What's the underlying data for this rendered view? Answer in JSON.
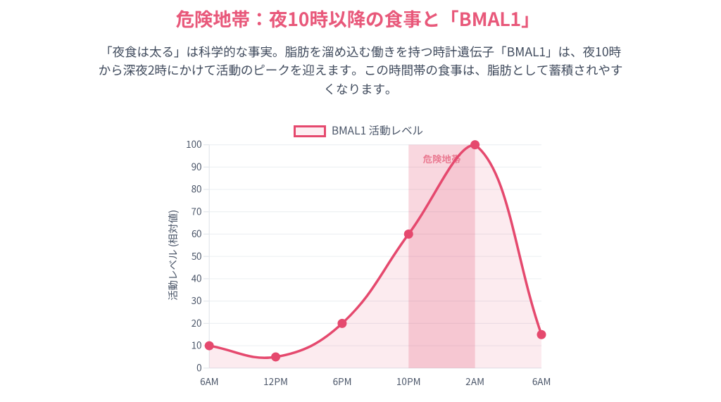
{
  "page": {
    "background": "#ffffff",
    "accent": "#e5496e",
    "title_color": "#e8587a",
    "body_text_color": "#3f4a5c",
    "axis_text_color": "#4a5568"
  },
  "header": {
    "title": "危険地帯：夜10時以降の食事と「BMAL1」",
    "paragraph": "「夜食は太る」は科学的な事実。脂肪を溜め込む働きを持つ時計遺伝子「BMAL1」は、夜10時から深夜2時にかけて活動のピークを迎えます。この時間帯の食事は、脂肪として蓄積されやすくなります。"
  },
  "chart_data": {
    "type": "line",
    "title": "",
    "categories": [
      "6AM",
      "12PM",
      "6PM",
      "10PM",
      "2AM",
      "6AM"
    ],
    "series": [
      {
        "name": "BMAL1 活動レベル",
        "values": [
          10,
          5,
          20,
          60,
          100,
          15
        ]
      }
    ],
    "xlabel": "",
    "ylabel": "活動レベル (相対値)",
    "ylim": [
      0,
      100
    ],
    "ytick_step": 10,
    "yticks": [
      0,
      10,
      20,
      30,
      40,
      50,
      60,
      70,
      80,
      90,
      100
    ],
    "grid": true,
    "legend_position": "top",
    "curve_tension": 0.4,
    "line_color": "#e5496e",
    "point_color": "#e5496e",
    "area_fill_color": "rgba(229,73,110,0.11)",
    "grid_color": "#edf0f3",
    "axis_line_color": "#e3e7ec",
    "danger_zone": {
      "label": "危険地帯",
      "from": "10PM",
      "to": "2AM",
      "from_index": 3,
      "to_index": 4,
      "fill_color": "rgba(229,73,110,0.22)",
      "label_color": "#ea7b92"
    },
    "legend": {
      "label": "BMAL1 活動レベル",
      "swatch_fill": "#fdeef2",
      "swatch_border": "#e5496e"
    }
  }
}
